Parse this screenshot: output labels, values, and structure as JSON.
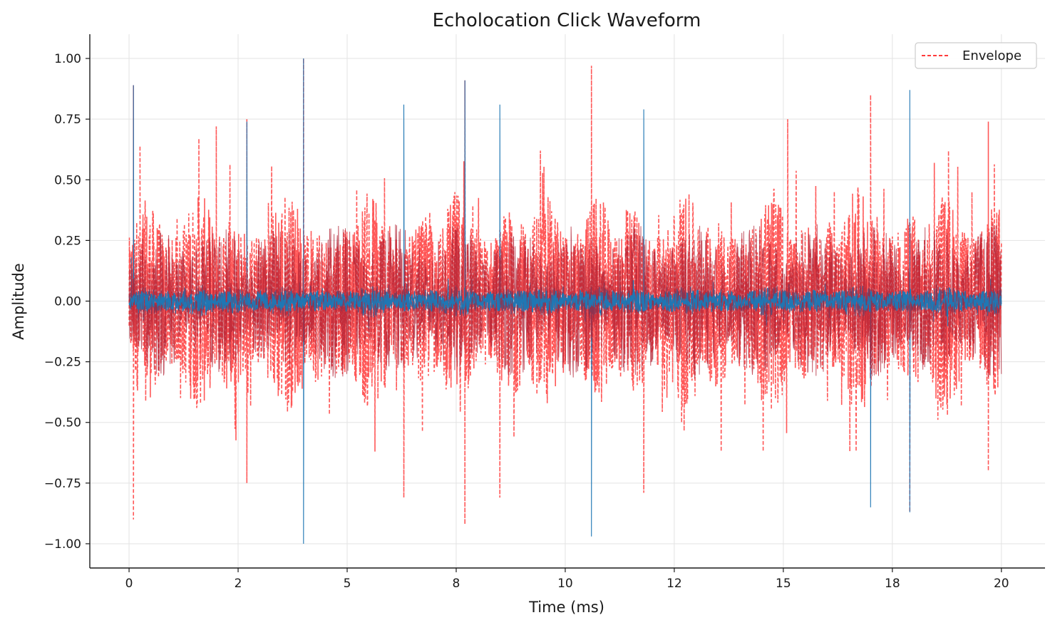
{
  "chart_data": {
    "type": "line",
    "title": "Echolocation Click Waveform",
    "xlabel": "Time (ms)",
    "ylabel": "Amplitude",
    "xlim": [
      -0.9,
      21.0
    ],
    "ylim": [
      -1.1,
      1.1
    ],
    "grid": true,
    "legend_position": "top-right",
    "x_ticks": [
      {
        "value": 0,
        "label": "0"
      },
      {
        "value": 2.5,
        "label": "2"
      },
      {
        "value": 5,
        "label": "5"
      },
      {
        "value": 7.5,
        "label": "8"
      },
      {
        "value": 10,
        "label": "10"
      },
      {
        "value": 12.5,
        "label": "12"
      },
      {
        "value": 15,
        "label": "15"
      },
      {
        "value": 17.5,
        "label": "18"
      },
      {
        "value": 20,
        "label": "20"
      }
    ],
    "y_ticks": [
      {
        "value": 1.0,
        "label": "1.00"
      },
      {
        "value": 0.75,
        "label": "0.75"
      },
      {
        "value": 0.5,
        "label": "0.50"
      },
      {
        "value": 0.25,
        "label": "0.25"
      },
      {
        "value": 0.0,
        "label": "0.00"
      },
      {
        "value": -0.25,
        "label": "−0.25"
      },
      {
        "value": -0.5,
        "label": "−0.50"
      },
      {
        "value": -0.75,
        "label": "−0.75"
      },
      {
        "value": -1.0,
        "label": "−1.00"
      }
    ],
    "series": [
      {
        "key": "waveform",
        "color": "#1f77b4",
        "style": "solid",
        "x_range": [
          0,
          20
        ],
        "typical_amplitude": 0.05,
        "peaks": [
          {
            "x": 0.05,
            "y": 0.18
          },
          {
            "x": 0.1,
            "y": 0.89
          },
          {
            "x": 2.7,
            "y": 0.74
          },
          {
            "x": 4.0,
            "y": 1.0
          },
          {
            "x": 4.0,
            "y": -1.0
          },
          {
            "x": 6.3,
            "y": 0.81
          },
          {
            "x": 7.7,
            "y": 0.91
          },
          {
            "x": 8.5,
            "y": 0.81
          },
          {
            "x": 10.6,
            "y": -0.97
          },
          {
            "x": 11.8,
            "y": 0.79
          },
          {
            "x": 17.0,
            "y": -0.85
          },
          {
            "x": 17.9,
            "y": 0.87
          },
          {
            "x": 17.9,
            "y": -0.87
          }
        ]
      },
      {
        "key": "envelope",
        "name": "Envelope",
        "color": "#ff3b3b",
        "style": "dashed",
        "opacity": 0.85,
        "x_range": [
          0,
          20
        ],
        "typical_amplitude": 0.35,
        "peaks": [
          {
            "x": 0.1,
            "y": 0.89
          },
          {
            "x": 0.1,
            "y": -0.9
          },
          {
            "x": 0.25,
            "y": 0.64
          },
          {
            "x": 1.6,
            "y": 0.67
          },
          {
            "x": 2.0,
            "y": 0.72
          },
          {
            "x": 2.7,
            "y": 0.75
          },
          {
            "x": 2.7,
            "y": -0.75
          },
          {
            "x": 4.0,
            "y": 1.0
          },
          {
            "x": 6.3,
            "y": -0.81
          },
          {
            "x": 7.7,
            "y": -0.92
          },
          {
            "x": 7.7,
            "y": 0.91
          },
          {
            "x": 8.5,
            "y": -0.81
          },
          {
            "x": 10.6,
            "y": 0.97
          },
          {
            "x": 11.8,
            "y": -0.79
          },
          {
            "x": 15.1,
            "y": 0.75
          },
          {
            "x": 17.0,
            "y": 0.85
          },
          {
            "x": 17.9,
            "y": -0.87
          },
          {
            "x": 19.7,
            "y": 0.74
          },
          {
            "x": 19.7,
            "y": -0.7
          }
        ]
      }
    ],
    "legend": [
      {
        "series": "envelope",
        "label": "Envelope",
        "color": "#ff3b3b",
        "style": "dashed"
      }
    ]
  }
}
